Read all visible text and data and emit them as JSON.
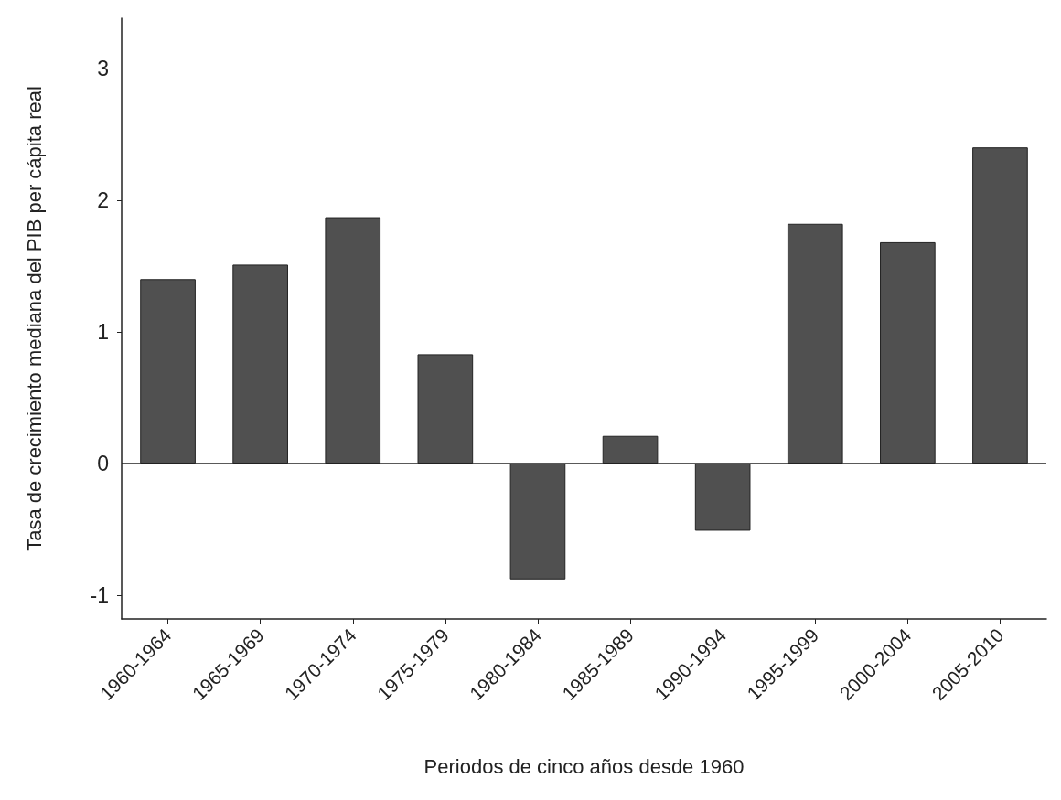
{
  "chart_data": {
    "type": "bar",
    "xlabel": "Periodos de cinco años desde 1960",
    "ylabel": "Tasa de crecimiento mediana del PIB per cápita real",
    "categories": [
      "1960-1964",
      "1965-1969",
      "1970-1974",
      "1975-1979",
      "1980-1984",
      "1985-1989",
      "1990-1994",
      "1995-1999",
      "2000-2004",
      "2005-2010"
    ],
    "values": [
      1.4,
      1.51,
      1.87,
      0.83,
      -0.88,
      0.21,
      -0.51,
      1.82,
      1.68,
      2.4
    ],
    "color": "#505050",
    "ylim": [
      -1.18,
      3.38
    ],
    "yticks": [
      -1,
      0,
      1,
      2,
      3
    ],
    "ref_lines": [
      {
        "axis": "y",
        "value": 0
      }
    ],
    "grid": false
  }
}
